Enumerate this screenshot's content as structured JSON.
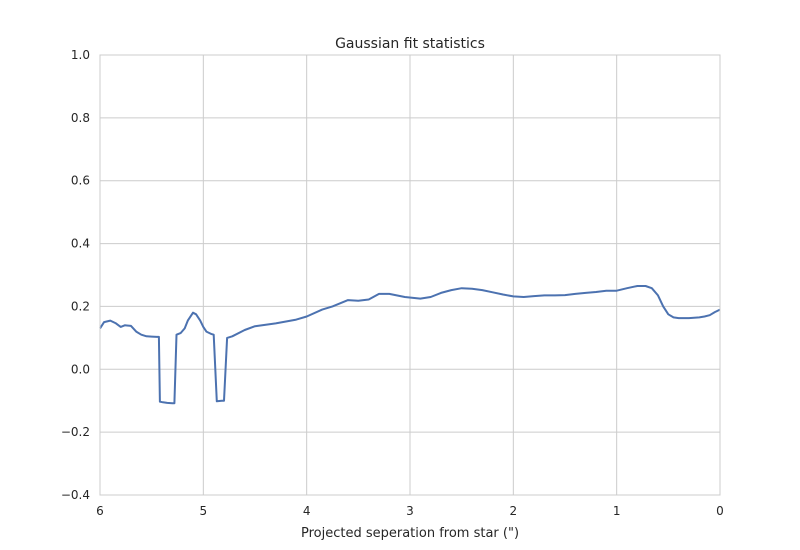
{
  "chart_data": {
    "type": "line",
    "title": "Gaussian fit statistics",
    "xlabel": "Projected seperation from star (\")",
    "ylabel": "",
    "xlim": [
      6,
      0
    ],
    "ylim": [
      -0.4,
      1.0
    ],
    "x_inverted": true,
    "grid": true,
    "xticks": [
      6,
      5,
      4,
      3,
      2,
      1,
      0
    ],
    "xtick_labels": [
      "6",
      "5",
      "4",
      "3",
      "2",
      "1",
      "0"
    ],
    "yticks": [
      -0.4,
      -0.2,
      0.0,
      0.2,
      0.4,
      0.6,
      0.8,
      1.0
    ],
    "ytick_labels": [
      "−0.4",
      "−0.2",
      "0.0",
      "0.2",
      "0.4",
      "0.6",
      "0.8",
      "1.0"
    ],
    "colors": {
      "line": "#4c72b0",
      "grid": "#cccccc",
      "frame": "#cccccc",
      "text": "#262626"
    },
    "series": [
      {
        "x": [
          6.0,
          5.96,
          5.9,
          5.85,
          5.8,
          5.76,
          5.7,
          5.65,
          5.6,
          5.55,
          5.5,
          5.45,
          5.43,
          5.42,
          5.39,
          5.35,
          5.3,
          5.28,
          5.26,
          5.22,
          5.18,
          5.15,
          5.1,
          5.07,
          5.03,
          5.0,
          4.97,
          4.92,
          4.9,
          4.87,
          4.82,
          4.8,
          4.77,
          4.72,
          4.6,
          4.5,
          4.3,
          4.1,
          4.0,
          3.85,
          3.75,
          3.6,
          3.5,
          3.4,
          3.3,
          3.2,
          3.05,
          2.9,
          2.8,
          2.7,
          2.6,
          2.5,
          2.4,
          2.3,
          2.2,
          2.1,
          2.0,
          1.9,
          1.8,
          1.7,
          1.6,
          1.5,
          1.4,
          1.3,
          1.2,
          1.1,
          1.0,
          0.9,
          0.8,
          0.72,
          0.66,
          0.6,
          0.55,
          0.5,
          0.45,
          0.4,
          0.3,
          0.2,
          0.15,
          0.1,
          0.05,
          0.0
        ],
        "y": [
          0.13,
          0.15,
          0.155,
          0.147,
          0.135,
          0.14,
          0.138,
          0.12,
          0.11,
          0.105,
          0.104,
          0.103,
          0.103,
          -0.103,
          -0.105,
          -0.107,
          -0.108,
          -0.108,
          0.11,
          0.115,
          0.13,
          0.155,
          0.18,
          0.175,
          0.155,
          0.135,
          0.12,
          0.112,
          0.11,
          -0.102,
          -0.1,
          -0.1,
          0.1,
          0.105,
          0.125,
          0.137,
          0.146,
          0.158,
          0.168,
          0.19,
          0.2,
          0.22,
          0.218,
          0.222,
          0.24,
          0.24,
          0.23,
          0.225,
          0.23,
          0.243,
          0.252,
          0.258,
          0.256,
          0.252,
          0.245,
          0.238,
          0.232,
          0.23,
          0.233,
          0.235,
          0.235,
          0.236,
          0.24,
          0.243,
          0.246,
          0.25,
          0.25,
          0.258,
          0.265,
          0.265,
          0.258,
          0.235,
          0.2,
          0.175,
          0.165,
          0.163,
          0.163,
          0.165,
          0.168,
          0.172,
          0.182,
          0.19
        ]
      }
    ]
  }
}
